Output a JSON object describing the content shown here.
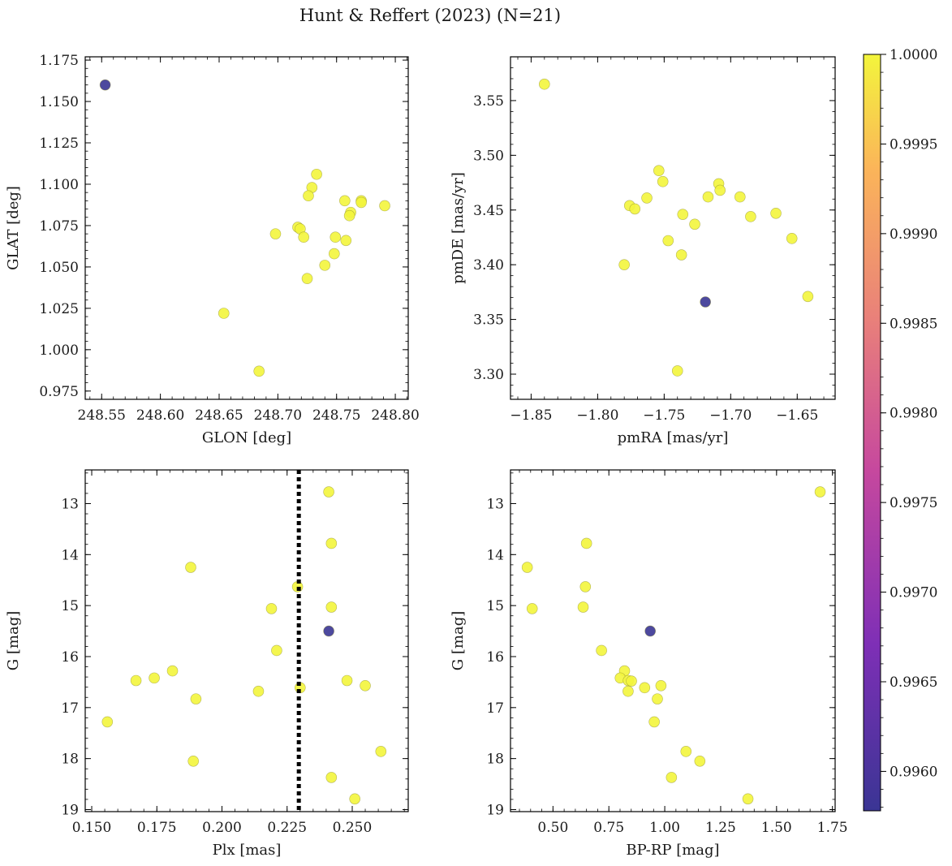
{
  "title": "Hunt & Reffert (2023) (N=21)",
  "colorbar": {
    "min": 0.99578,
    "max": 1.0,
    "ticks": [
      0.996,
      0.9965,
      0.997,
      0.9975,
      0.998,
      0.9985,
      0.999,
      0.9995,
      1.0
    ],
    "tick_labels": [
      "0.9960",
      "0.9965",
      "0.9970",
      "0.9975",
      "0.9980",
      "0.9985",
      "0.9990",
      "0.9995",
      "1.0000"
    ],
    "colormap": "plasma",
    "low_color": "#3a3594",
    "high_color": "#f3f53c"
  },
  "chart_data": [
    {
      "type": "scatter",
      "id": "glon-glat",
      "xlabel": "GLON [deg]",
      "ylabel": "GLAT [deg]",
      "xlim": [
        248.536,
        248.811
      ],
      "ylim": [
        0.97,
        1.177
      ],
      "invert_y": false,
      "xticks": [
        248.55,
        248.6,
        248.65,
        248.7,
        248.75,
        248.8
      ],
      "xtick_labels": [
        "248.55",
        "248.60",
        "248.65",
        "248.70",
        "248.75",
        "248.80"
      ],
      "yticks": [
        0.975,
        1.0,
        1.025,
        1.05,
        1.075,
        1.1,
        1.125,
        1.15,
        1.175
      ],
      "ytick_labels": [
        "0.975",
        "1.000",
        "1.025",
        "1.050",
        "1.075",
        "1.100",
        "1.125",
        "1.150",
        "1.175"
      ],
      "points": [
        {
          "x": 248.553,
          "y": 1.16,
          "c": 0.99578
        },
        {
          "x": 248.733,
          "y": 1.106,
          "c": 1.0
        },
        {
          "x": 248.729,
          "y": 1.098,
          "c": 1.0
        },
        {
          "x": 248.726,
          "y": 1.093,
          "c": 1.0
        },
        {
          "x": 248.757,
          "y": 1.09,
          "c": 1.0
        },
        {
          "x": 248.771,
          "y": 1.09,
          "c": 1.0
        },
        {
          "x": 248.771,
          "y": 1.089,
          "c": 1.0
        },
        {
          "x": 248.791,
          "y": 1.087,
          "c": 1.0
        },
        {
          "x": 248.762,
          "y": 1.083,
          "c": 1.0
        },
        {
          "x": 248.761,
          "y": 1.081,
          "c": 1.0
        },
        {
          "x": 248.717,
          "y": 1.074,
          "c": 1.0
        },
        {
          "x": 248.719,
          "y": 1.073,
          "c": 1.0
        },
        {
          "x": 248.698,
          "y": 1.07,
          "c": 1.0
        },
        {
          "x": 248.722,
          "y": 1.068,
          "c": 1.0
        },
        {
          "x": 248.749,
          "y": 1.068,
          "c": 1.0
        },
        {
          "x": 248.758,
          "y": 1.066,
          "c": 1.0
        },
        {
          "x": 248.748,
          "y": 1.058,
          "c": 1.0
        },
        {
          "x": 248.74,
          "y": 1.051,
          "c": 1.0
        },
        {
          "x": 248.725,
          "y": 1.043,
          "c": 1.0
        },
        {
          "x": 248.654,
          "y": 1.022,
          "c": 1.0
        },
        {
          "x": 248.684,
          "y": 0.987,
          "c": 1.0
        }
      ]
    },
    {
      "type": "scatter",
      "id": "pmra-pmde",
      "xlabel": "pmRA [mas/yr]",
      "ylabel": "pmDE [mas/yr]",
      "xlim": [
        -1.8655,
        -1.6215
      ],
      "ylim": [
        3.277,
        3.59
      ],
      "invert_y": false,
      "xticks": [
        -1.85,
        -1.8,
        -1.75,
        -1.7,
        -1.65
      ],
      "xtick_labels": [
        "−1.85",
        "−1.80",
        "−1.75",
        "−1.70",
        "−1.65"
      ],
      "yticks": [
        3.3,
        3.35,
        3.4,
        3.45,
        3.5,
        3.55
      ],
      "ytick_labels": [
        "3.30",
        "3.35",
        "3.40",
        "3.45",
        "3.50",
        "3.55"
      ],
      "points": [
        {
          "x": -1.84,
          "y": 3.565,
          "c": 1.0
        },
        {
          "x": -1.754,
          "y": 3.486,
          "c": 1.0
        },
        {
          "x": -1.751,
          "y": 3.476,
          "c": 1.0
        },
        {
          "x": -1.709,
          "y": 3.474,
          "c": 1.0
        },
        {
          "x": -1.708,
          "y": 3.468,
          "c": 1.0
        },
        {
          "x": -1.763,
          "y": 3.461,
          "c": 1.0
        },
        {
          "x": -1.717,
          "y": 3.462,
          "c": 1.0
        },
        {
          "x": -1.693,
          "y": 3.462,
          "c": 1.0
        },
        {
          "x": -1.776,
          "y": 3.454,
          "c": 1.0
        },
        {
          "x": -1.772,
          "y": 3.451,
          "c": 1.0
        },
        {
          "x": -1.666,
          "y": 3.447,
          "c": 1.0
        },
        {
          "x": -1.736,
          "y": 3.446,
          "c": 1.0
        },
        {
          "x": -1.685,
          "y": 3.444,
          "c": 1.0
        },
        {
          "x": -1.727,
          "y": 3.437,
          "c": 1.0
        },
        {
          "x": -1.654,
          "y": 3.424,
          "c": 1.0
        },
        {
          "x": -1.747,
          "y": 3.422,
          "c": 1.0
        },
        {
          "x": -1.737,
          "y": 3.409,
          "c": 1.0
        },
        {
          "x": -1.78,
          "y": 3.4,
          "c": 1.0
        },
        {
          "x": -1.642,
          "y": 3.371,
          "c": 1.0
        },
        {
          "x": -1.719,
          "y": 3.366,
          "c": 0.99578
        },
        {
          "x": -1.74,
          "y": 3.303,
          "c": 1.0
        }
      ]
    },
    {
      "type": "scatter",
      "id": "plx-g",
      "xlabel": "Plx [mas]",
      "ylabel": "G [mag]",
      "xlim": [
        0.1475,
        0.2715
      ],
      "ylim": [
        12.34,
        19.04
      ],
      "invert_y": true,
      "vline": {
        "x": 0.2295,
        "style": "dotted",
        "color": "#000000"
      },
      "xticks": [
        0.15,
        0.175,
        0.2,
        0.225,
        0.25
      ],
      "xtick_labels": [
        "0.150",
        "0.175",
        "0.200",
        "0.225",
        "0.250"
      ],
      "yticks": [
        13,
        14,
        15,
        16,
        17,
        18,
        19
      ],
      "ytick_labels": [
        "13",
        "14",
        "15",
        "16",
        "17",
        "18",
        "19"
      ],
      "points": [
        {
          "x": 0.241,
          "y": 12.77,
          "c": 1.0
        },
        {
          "x": 0.242,
          "y": 13.78,
          "c": 1.0
        },
        {
          "x": 0.188,
          "y": 14.25,
          "c": 1.0
        },
        {
          "x": 0.229,
          "y": 14.63,
          "c": 1.0
        },
        {
          "x": 0.242,
          "y": 15.03,
          "c": 1.0
        },
        {
          "x": 0.219,
          "y": 15.06,
          "c": 1.0
        },
        {
          "x": 0.241,
          "y": 15.5,
          "c": 0.99578
        },
        {
          "x": 0.221,
          "y": 15.88,
          "c": 1.0
        },
        {
          "x": 0.181,
          "y": 16.28,
          "c": 1.0
        },
        {
          "x": 0.174,
          "y": 16.42,
          "c": 1.0
        },
        {
          "x": 0.167,
          "y": 16.47,
          "c": 1.0
        },
        {
          "x": 0.248,
          "y": 16.47,
          "c": 1.0
        },
        {
          "x": 0.255,
          "y": 16.57,
          "c": 1.0
        },
        {
          "x": 0.23,
          "y": 16.61,
          "c": 1.0
        },
        {
          "x": 0.214,
          "y": 16.68,
          "c": 1.0
        },
        {
          "x": 0.19,
          "y": 16.83,
          "c": 1.0
        },
        {
          "x": 0.156,
          "y": 17.28,
          "c": 1.0
        },
        {
          "x": 0.261,
          "y": 17.86,
          "c": 1.0
        },
        {
          "x": 0.189,
          "y": 18.05,
          "c": 1.0
        },
        {
          "x": 0.242,
          "y": 18.37,
          "c": 1.0
        },
        {
          "x": 0.251,
          "y": 18.79,
          "c": 1.0
        }
      ]
    },
    {
      "type": "scatter",
      "id": "bprp-g",
      "xlabel": "BP-RP [mag]",
      "ylabel": "G [mag]",
      "xlim": [
        0.31,
        1.762
      ],
      "ylim": [
        12.34,
        19.04
      ],
      "invert_y": true,
      "xticks": [
        0.5,
        0.75,
        1.0,
        1.25,
        1.5,
        1.75
      ],
      "xtick_labels": [
        "0.50",
        "0.75",
        "1.00",
        "1.25",
        "1.50",
        "1.75"
      ],
      "yticks": [
        13,
        14,
        15,
        16,
        17,
        18,
        19
      ],
      "ytick_labels": [
        "13",
        "14",
        "15",
        "16",
        "17",
        "18",
        "19"
      ],
      "points": [
        {
          "x": 1.695,
          "y": 12.77,
          "c": 1.0
        },
        {
          "x": 0.65,
          "y": 13.78,
          "c": 1.0
        },
        {
          "x": 0.385,
          "y": 14.25,
          "c": 1.0
        },
        {
          "x": 0.645,
          "y": 14.63,
          "c": 1.0
        },
        {
          "x": 0.635,
          "y": 15.03,
          "c": 1.0
        },
        {
          "x": 0.407,
          "y": 15.06,
          "c": 1.0
        },
        {
          "x": 0.935,
          "y": 15.5,
          "c": 0.99578
        },
        {
          "x": 0.717,
          "y": 15.88,
          "c": 1.0
        },
        {
          "x": 0.82,
          "y": 16.28,
          "c": 1.0
        },
        {
          "x": 0.801,
          "y": 16.42,
          "c": 1.0
        },
        {
          "x": 0.837,
          "y": 16.47,
          "c": 1.0
        },
        {
          "x": 0.851,
          "y": 16.48,
          "c": 1.0
        },
        {
          "x": 0.983,
          "y": 16.57,
          "c": 1.0
        },
        {
          "x": 0.91,
          "y": 16.61,
          "c": 1.0
        },
        {
          "x": 0.836,
          "y": 16.68,
          "c": 1.0
        },
        {
          "x": 0.967,
          "y": 16.83,
          "c": 1.0
        },
        {
          "x": 0.953,
          "y": 17.28,
          "c": 1.0
        },
        {
          "x": 1.095,
          "y": 17.86,
          "c": 1.0
        },
        {
          "x": 1.157,
          "y": 18.05,
          "c": 1.0
        },
        {
          "x": 1.03,
          "y": 18.37,
          "c": 1.0
        },
        {
          "x": 1.372,
          "y": 18.79,
          "c": 1.0
        }
      ]
    }
  ]
}
